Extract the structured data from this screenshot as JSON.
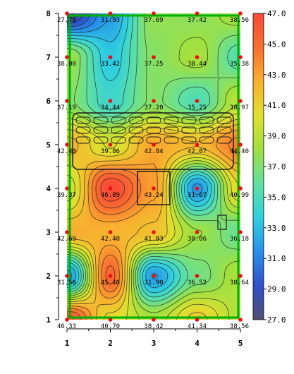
{
  "chart_data": {
    "type": "heatmap",
    "title": "",
    "xlabel": "",
    "ylabel": "",
    "xlim": [
      1,
      5
    ],
    "ylim": [
      1,
      8
    ],
    "x_ticks": [
      "1",
      "2",
      "3",
      "4",
      "5"
    ],
    "y_ticks": [
      "1",
      "2",
      "3",
      "4",
      "5",
      "6",
      "7",
      "8"
    ],
    "colorbar": {
      "min": 27.0,
      "max": 47.0,
      "ticks": [
        "47.0",
        "45.0",
        "43.0",
        "41.0",
        "39.0",
        "37.0",
        "35.0",
        "33.0",
        "31.0",
        "29.0",
        "27.0"
      ],
      "colors": [
        "#505070",
        "#3050c8",
        "#2890e8",
        "#30d0e0",
        "#60e0a0",
        "#a0e040",
        "#e0e030",
        "#f8b030",
        "#f87030",
        "#f84838"
      ]
    },
    "points": [
      {
        "x": 1,
        "y": 8,
        "value": 27.78,
        "label": "27.78"
      },
      {
        "x": 2,
        "y": 8,
        "value": 31.93,
        "label": "31.93"
      },
      {
        "x": 3,
        "y": 8,
        "value": 37.69,
        "label": "37.69"
      },
      {
        "x": 4,
        "y": 8,
        "value": 37.42,
        "label": "37.42"
      },
      {
        "x": 5,
        "y": 8,
        "value": 38.56,
        "label": "38.56"
      },
      {
        "x": 1,
        "y": 7,
        "value": 38.0,
        "label": "38.00"
      },
      {
        "x": 2,
        "y": 7,
        "value": 33.42,
        "label": "33.42"
      },
      {
        "x": 3,
        "y": 7,
        "value": 37.25,
        "label": "37.25"
      },
      {
        "x": 4,
        "y": 7,
        "value": 38.44,
        "label": "38.44"
      },
      {
        "x": 5,
        "y": 7,
        "value": 35.38,
        "label": "35.38"
      },
      {
        "x": 1,
        "y": 6,
        "value": 37.19,
        "label": "37.19"
      },
      {
        "x": 2,
        "y": 6,
        "value": 34.44,
        "label": "34.44"
      },
      {
        "x": 3,
        "y": 6,
        "value": 37.2,
        "label": "37.20"
      },
      {
        "x": 4,
        "y": 6,
        "value": 35.25,
        "label": "35.25"
      },
      {
        "x": 5,
        "y": 6,
        "value": 38.97,
        "label": "38.97"
      },
      {
        "x": 1,
        "y": 5,
        "value": 42.4,
        "label": "42.40"
      },
      {
        "x": 2,
        "y": 5,
        "value": 39.86,
        "label": "39.86"
      },
      {
        "x": 3,
        "y": 5,
        "value": 42.84,
        "label": "42.84"
      },
      {
        "x": 4,
        "y": 5,
        "value": 42.07,
        "label": "42.07"
      },
      {
        "x": 5,
        "y": 5,
        "value": 44.4,
        "label": "44.40"
      },
      {
        "x": 1,
        "y": 4,
        "value": 39.37,
        "label": "39.37"
      },
      {
        "x": 2,
        "y": 4,
        "value": 46.89,
        "label": "46.89"
      },
      {
        "x": 3,
        "y": 4,
        "value": 43.24,
        "label": "43.24"
      },
      {
        "x": 4,
        "y": 4,
        "value": 31.67,
        "label": "31.67"
      },
      {
        "x": 5,
        "y": 4,
        "value": 40.99,
        "label": "40.99"
      },
      {
        "x": 1,
        "y": 3,
        "value": 42.69,
        "label": "42.69"
      },
      {
        "x": 2,
        "y": 3,
        "value": 42.4,
        "label": "42.40"
      },
      {
        "x": 3,
        "y": 3,
        "value": 41.83,
        "label": "41.83"
      },
      {
        "x": 4,
        "y": 3,
        "value": 38.06,
        "label": "38.06"
      },
      {
        "x": 5,
        "y": 3,
        "value": 36.18,
        "label": "36.18"
      },
      {
        "x": 1,
        "y": 2,
        "value": 31.56,
        "label": "31.56"
      },
      {
        "x": 2,
        "y": 2,
        "value": 45.4,
        "label": "45.40"
      },
      {
        "x": 3,
        "y": 2,
        "value": 31.9,
        "label": "31.90"
      },
      {
        "x": 4,
        "y": 2,
        "value": 36.52,
        "label": "36.52"
      },
      {
        "x": 5,
        "y": 2,
        "value": 38.64,
        "label": "38.64"
      },
      {
        "x": 1,
        "y": 1,
        "value": 46.33,
        "label": "46.33"
      },
      {
        "x": 2,
        "y": 1,
        "value": 40.7,
        "label": "40.70"
      },
      {
        "x": 3,
        "y": 1,
        "value": 38.42,
        "label": "38.42"
      },
      {
        "x": 4,
        "y": 1,
        "value": 41.34,
        "label": "41.34"
      },
      {
        "x": 5,
        "y": 1,
        "value": 38.56,
        "label": "38.56"
      }
    ]
  }
}
